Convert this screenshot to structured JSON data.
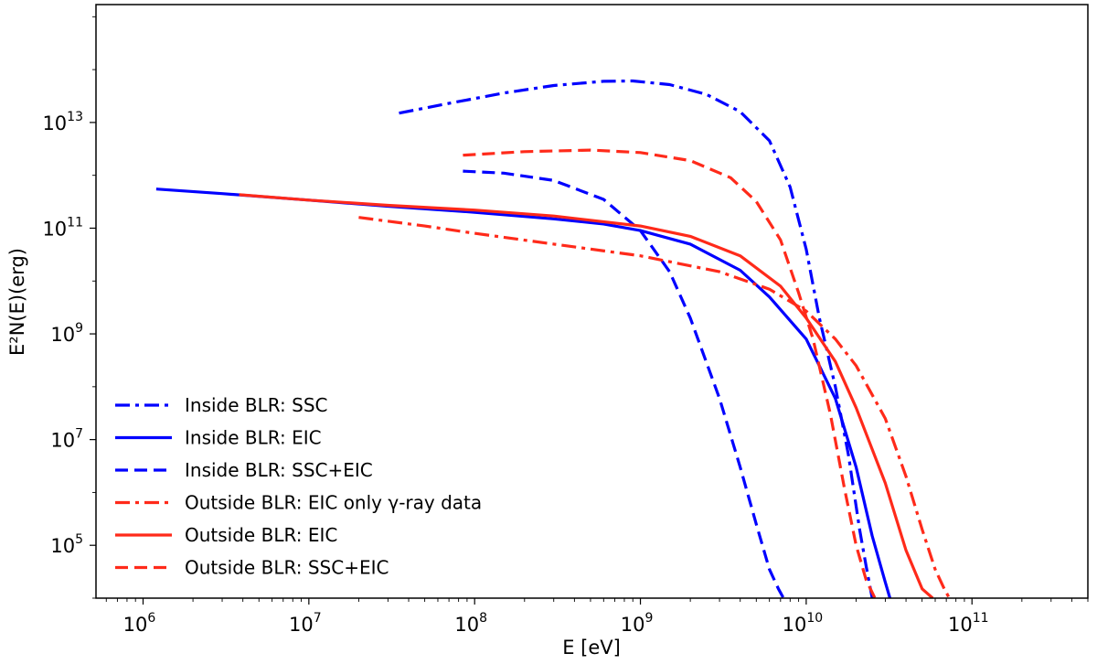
{
  "chart_data": {
    "type": "line",
    "title": "",
    "xlabel": "E [eV]",
    "ylabel": "E²N(E)(erg)",
    "xscale": "log",
    "yscale": "log",
    "xlim": [
      520000,
      500000000000
    ],
    "ylim": [
      10000,
      1700000000000000.0
    ],
    "grid": false,
    "legend_position": "lower-left",
    "x_ticks": [
      {
        "base": "10",
        "exp": "6",
        "value": 1000000.0
      },
      {
        "base": "10",
        "exp": "7",
        "value": 10000000.0
      },
      {
        "base": "10",
        "exp": "8",
        "value": 100000000.0
      },
      {
        "base": "10",
        "exp": "9",
        "value": 1000000000.0
      },
      {
        "base": "10",
        "exp": "10",
        "value": 10000000000.0
      },
      {
        "base": "10",
        "exp": "11",
        "value": 100000000000.0
      }
    ],
    "y_ticks": [
      {
        "base": "10",
        "exp": "5",
        "value": 100000.0
      },
      {
        "base": "10",
        "exp": "7",
        "value": 10000000.0
      },
      {
        "base": "10",
        "exp": "9",
        "value": 1000000000.0
      },
      {
        "base": "10",
        "exp": "11",
        "value": 100000000000.0
      },
      {
        "base": "10",
        "exp": "13",
        "value": 10000000000000.0
      }
    ],
    "series": [
      {
        "name": "Inside BLR: SSC",
        "color": "#0000ff",
        "style": "dashdot",
        "x": [
          35000000.0,
          70000000.0,
          150000000.0,
          300000000.0,
          600000000.0,
          900000000.0,
          1500000000.0,
          2500000000.0,
          4000000000.0,
          6000000000.0,
          8000000000.0,
          10000000000.0,
          12000000000.0,
          15000000000.0,
          18000000000.0,
          21000000000.0,
          23000000000.0,
          25000000000.0
        ],
        "y": [
          15000000000000.0,
          23000000000000.0,
          36000000000000.0,
          50000000000000.0,
          60000000000000.0,
          61000000000000.0,
          52000000000000.0,
          34000000000000.0,
          16000000000000.0,
          4500000000000.0,
          600000000000.0,
          40000000000.0,
          2000000000.0,
          100000000.0,
          5000000.0,
          200000.0,
          40000.0,
          10000.0
        ]
      },
      {
        "name": "Inside BLR: EIC",
        "color": "#0000ff",
        "style": "solid",
        "x": [
          1200000.0,
          3000000.0,
          10000000.0,
          30000000.0,
          100000000.0,
          300000000.0,
          600000000.0,
          1000000000.0,
          2000000000.0,
          4000000000.0,
          6000000000.0,
          10000000000.0,
          15000000000.0,
          20000000000.0,
          25000000000.0,
          30000000000.0,
          32000000000.0
        ],
        "y": [
          550000000000.0,
          450000000000.0,
          340000000000.0,
          260000000000.0,
          200000000000.0,
          150000000000.0,
          120000000000.0,
          90000000000.0,
          50000000000.0,
          16000000000.0,
          5000000000.0,
          800000000.0,
          60000000.0,
          3000000.0,
          150000.0,
          20000.0,
          10000.0
        ]
      },
      {
        "name": "Inside BLR: SSC+EIC",
        "color": "#0000ff",
        "style": "dashed",
        "x": [
          85000000.0,
          150000000.0,
          300000000.0,
          600000000.0,
          1000000000.0,
          1500000000.0,
          2000000000.0,
          3000000000.0,
          4000000000.0,
          5000000000.0,
          6000000000.0,
          6800000000.0,
          7300000000.0
        ],
        "y": [
          1200000000000.0,
          1100000000000.0,
          800000000000.0,
          350000000000.0,
          90000000000.0,
          15000000000.0,
          2000000000.0,
          60000000.0,
          3000000.0,
          250000.0,
          35000.0,
          15000.0,
          10000.0
        ]
      },
      {
        "name": "Outside BLR: EIC only γ-ray data",
        "color": "#ff2a1a",
        "style": "dashdot",
        "x": [
          20000000.0,
          50000000.0,
          100000000.0,
          300000000.0,
          1000000000.0,
          3000000000.0,
          6000000000.0,
          10000000000.0,
          15000000000.0,
          20000000000.0,
          30000000000.0,
          40000000000.0,
          50000000000.0,
          60000000000.0,
          68000000000.0,
          73000000000.0
        ],
        "y": [
          160000000000.0,
          110000000000.0,
          80000000000.0,
          50000000000.0,
          30000000000.0,
          15000000000.0,
          7000000000.0,
          2700000000.0,
          800000000.0,
          250000000.0,
          25000000.0,
          2000000.0,
          200000.0,
          35000.0,
          15000.0,
          10000.0
        ]
      },
      {
        "name": "Outside BLR: EIC",
        "color": "#ff2a1a",
        "style": "solid",
        "x": [
          3800000.0,
          10000000.0,
          30000000.0,
          100000000.0,
          300000000.0,
          1000000000.0,
          2000000000.0,
          4000000000.0,
          7000000000.0,
          10000000000.0,
          15000000000.0,
          20000000000.0,
          30000000000.0,
          40000000000.0,
          50000000000.0,
          58000000000.0
        ],
        "y": [
          430000000000.0,
          340000000000.0,
          270000000000.0,
          220000000000.0,
          170000000000.0,
          110000000000.0,
          70000000000.0,
          30000000000.0,
          8000000000.0,
          2000000000.0,
          300000000.0,
          40000000.0,
          1500000.0,
          80000.0,
          15000.0,
          10000.0
        ]
      },
      {
        "name": "Outside BLR: SSC+EIC",
        "color": "#ff2a1a",
        "style": "dashed",
        "x": [
          85000000.0,
          200000000.0,
          500000000.0,
          1000000000.0,
          2000000000.0,
          3500000000.0,
          5000000000.0,
          7000000000.0,
          9000000000.0,
          11000000000.0,
          14000000000.0,
          17000000000.0,
          20000000000.0,
          23000000000.0,
          26000000000.0
        ],
        "y": [
          2400000000000.0,
          2800000000000.0,
          3000000000000.0,
          2700000000000.0,
          1900000000000.0,
          900000000000.0,
          320000000000.0,
          60000000000.0,
          6000000000.0,
          800000000.0,
          30000000.0,
          1200000.0,
          100000.0,
          22000.0,
          10000.0
        ]
      }
    ]
  }
}
